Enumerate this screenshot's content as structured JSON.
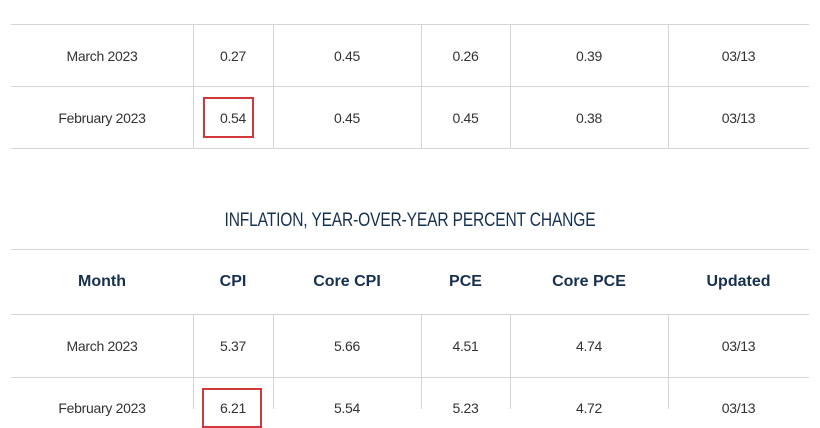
{
  "tables": [
    {
      "rows": [
        [
          "March 2023",
          "0.27",
          "0.45",
          "0.26",
          "0.39",
          "03/13"
        ],
        [
          "February 2023",
          "0.54",
          "0.45",
          "0.45",
          "0.38",
          "03/13"
        ]
      ]
    },
    {
      "title": "INFLATION, YEAR-OVER-YEAR PERCENT CHANGE",
      "header": [
        "Month",
        "CPI",
        "Core CPI",
        "PCE",
        "Core PCE",
        "Updated"
      ],
      "rows": [
        [
          "March 2023",
          "5.37",
          "5.66",
          "4.51",
          "4.74",
          "03/13"
        ],
        [
          "February 2023",
          "6.21",
          "5.54",
          "5.23",
          "4.72",
          "03/13"
        ]
      ]
    }
  ]
}
